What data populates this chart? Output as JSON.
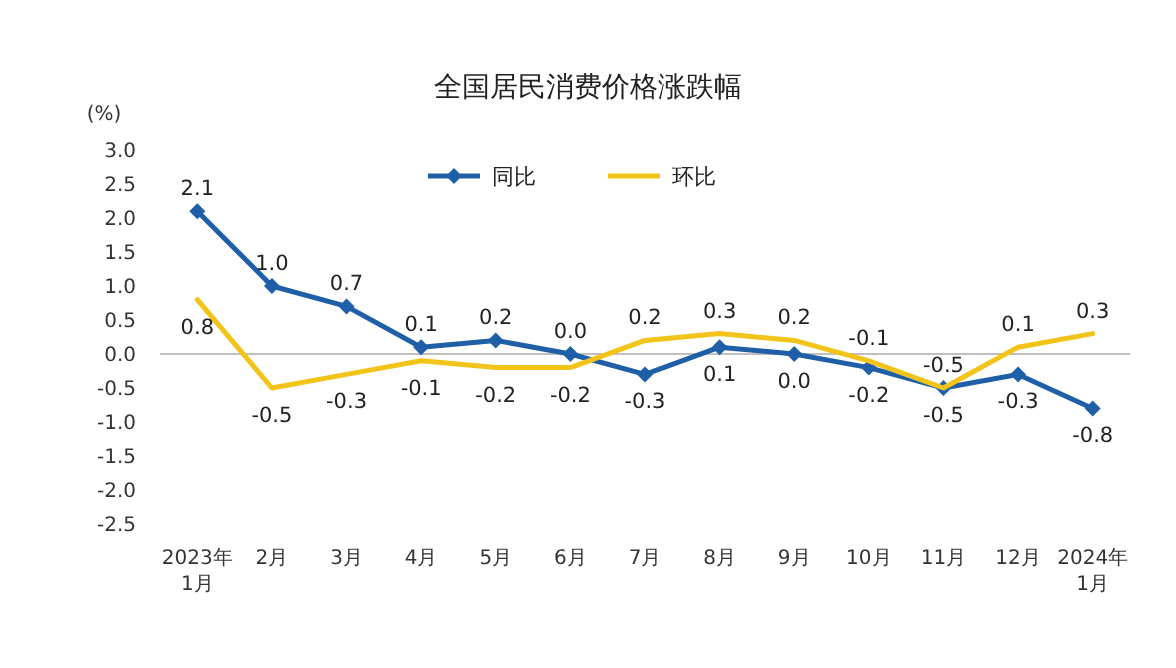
{
  "chart_data": {
    "type": "line",
    "title": "全国居民消费价格涨跌幅",
    "ylabel": "(%)",
    "categories": [
      "2023年\n1月",
      "2月",
      "3月",
      "4月",
      "5月",
      "6月",
      "7月",
      "8月",
      "9月",
      "10月",
      "11月",
      "12月",
      "2024年\n1月"
    ],
    "series": [
      {
        "name": "同比",
        "color": "#1f5fa8",
        "marker": "diamond",
        "values": [
          2.1,
          1.0,
          0.7,
          0.1,
          0.2,
          0.0,
          -0.3,
          0.1,
          0.0,
          -0.2,
          -0.5,
          -0.3,
          -0.8
        ],
        "value_labels": [
          "2.1",
          "1.0",
          "0.7",
          "0.1",
          "0.2",
          "0.0",
          "-0.3",
          "0.1",
          "0.0",
          "-0.2",
          "-0.5",
          "-0.3",
          "-0.8"
        ]
      },
      {
        "name": "环比",
        "color": "#f2c318",
        "marker": "none",
        "values": [
          0.8,
          -0.5,
          -0.3,
          -0.1,
          -0.2,
          -0.2,
          0.2,
          0.3,
          0.2,
          -0.1,
          -0.5,
          0.1,
          0.3
        ],
        "value_labels": [
          "0.8",
          "-0.5",
          "-0.3",
          "-0.1",
          "-0.2",
          "-0.2",
          "0.2",
          "0.3",
          "0.2",
          "-0.1",
          "-0.5",
          "0.1",
          "0.3"
        ]
      }
    ],
    "ylim": [
      -2.5,
      3.0
    ],
    "yticks": [
      {
        "value": 3.0,
        "label": "3.0"
      },
      {
        "value": 2.5,
        "label": "2.5"
      },
      {
        "value": 2.0,
        "label": "2.0"
      },
      {
        "value": 1.5,
        "label": "1.5"
      },
      {
        "value": 1.0,
        "label": "1.0"
      },
      {
        "value": 0.5,
        "label": "0.5"
      },
      {
        "value": 0.0,
        "label": "0.0"
      },
      {
        "value": -0.5,
        "label": "-0.5"
      },
      {
        "value": -1.0,
        "label": "-1.0"
      },
      {
        "value": -1.5,
        "label": "-1.5"
      },
      {
        "value": -2.0,
        "label": "-2.0"
      },
      {
        "value": -2.5,
        "label": "-2.5"
      }
    ],
    "ref_lines": [
      {
        "axis": "y",
        "value": 0,
        "color": "#bfbfbf"
      }
    ],
    "legend": "top",
    "grid": false
  }
}
